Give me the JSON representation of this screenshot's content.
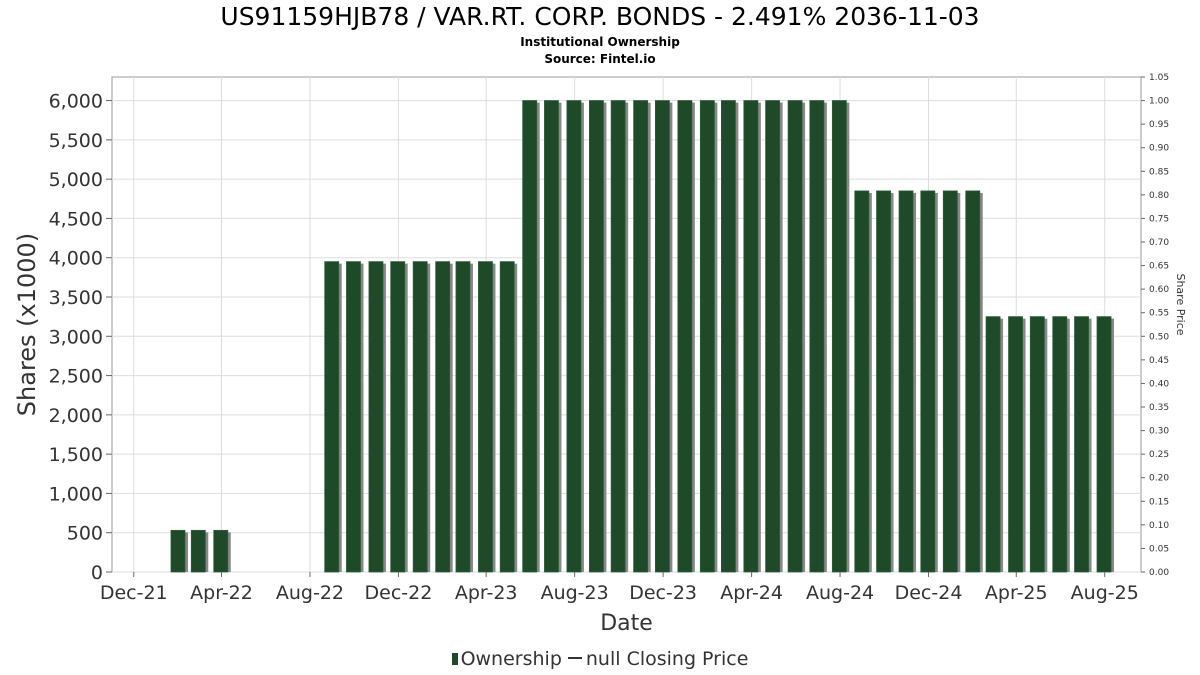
{
  "title": "US91159HJB78 / VAR.RT. CORP. BONDS - 2.491% 2036-11-03",
  "subtitle1": "Institutional Ownership",
  "subtitle2": "Source: Fintel.io",
  "legend": {
    "ownership": "Ownership",
    "price": "null Closing Price"
  },
  "colors": {
    "bar": "#1e4a2a",
    "bar_shadow": "#888888",
    "grid": "#dddddd"
  },
  "chart_data": {
    "type": "bar",
    "xlabel": "Date",
    "ylabel": "Shares (x1000)",
    "y2label": "Share Price",
    "ylim": [
      0,
      6300
    ],
    "y2lim": [
      0,
      1.05
    ],
    "grid": true,
    "legend_position": "bottom",
    "x_ticks": [
      "Dec-21",
      "Apr-22",
      "Aug-22",
      "Dec-22",
      "Apr-23",
      "Aug-23",
      "Dec-23",
      "Apr-24",
      "Aug-24",
      "Dec-24",
      "Apr-25",
      "Aug-25"
    ],
    "y_ticks": [
      "0",
      "500",
      "1,000",
      "1,500",
      "2,000",
      "2,500",
      "3,000",
      "3,500",
      "4,000",
      "4,500",
      "5,000",
      "5,500",
      "6,000"
    ],
    "y2_ticks": [
      "0.00",
      "0.05",
      "0.10",
      "0.15",
      "0.20",
      "0.25",
      "0.30",
      "0.35",
      "0.40",
      "0.45",
      "0.50",
      "0.55",
      "0.60",
      "0.65",
      "0.70",
      "0.75",
      "0.80",
      "0.85",
      "0.90",
      "0.95",
      "1.00",
      "1.05"
    ],
    "series": [
      {
        "name": "Ownership",
        "x": [
          "2022-01-31",
          "2022-02-28",
          "2022-03-31",
          "2022-08-31",
          "2022-09-30",
          "2022-10-31",
          "2022-11-30",
          "2022-12-31",
          "2023-01-31",
          "2023-02-28",
          "2023-03-31",
          "2023-04-30",
          "2023-05-31",
          "2023-06-30",
          "2023-07-31",
          "2023-08-31",
          "2023-09-30",
          "2023-10-31",
          "2023-11-30",
          "2023-12-31",
          "2024-01-31",
          "2024-02-29",
          "2024-03-31",
          "2024-04-30",
          "2024-05-31",
          "2024-06-30",
          "2024-07-31",
          "2024-08-31",
          "2024-09-30",
          "2024-10-31",
          "2024-11-30",
          "2024-12-31",
          "2025-01-31",
          "2025-02-28",
          "2025-03-31",
          "2025-04-30",
          "2025-05-31",
          "2025-06-30",
          "2025-07-31"
        ],
        "values": [
          530,
          530,
          530,
          3950,
          3950,
          3950,
          3950,
          3950,
          3950,
          3950,
          3950,
          3950,
          6000,
          6000,
          6000,
          6000,
          6000,
          6000,
          6000,
          6000,
          6000,
          6000,
          6000,
          6000,
          6000,
          6000,
          6000,
          4850,
          4850,
          4850,
          4850,
          4850,
          4850,
          3250,
          3250,
          3250,
          3250,
          3250,
          3250
        ]
      }
    ]
  }
}
